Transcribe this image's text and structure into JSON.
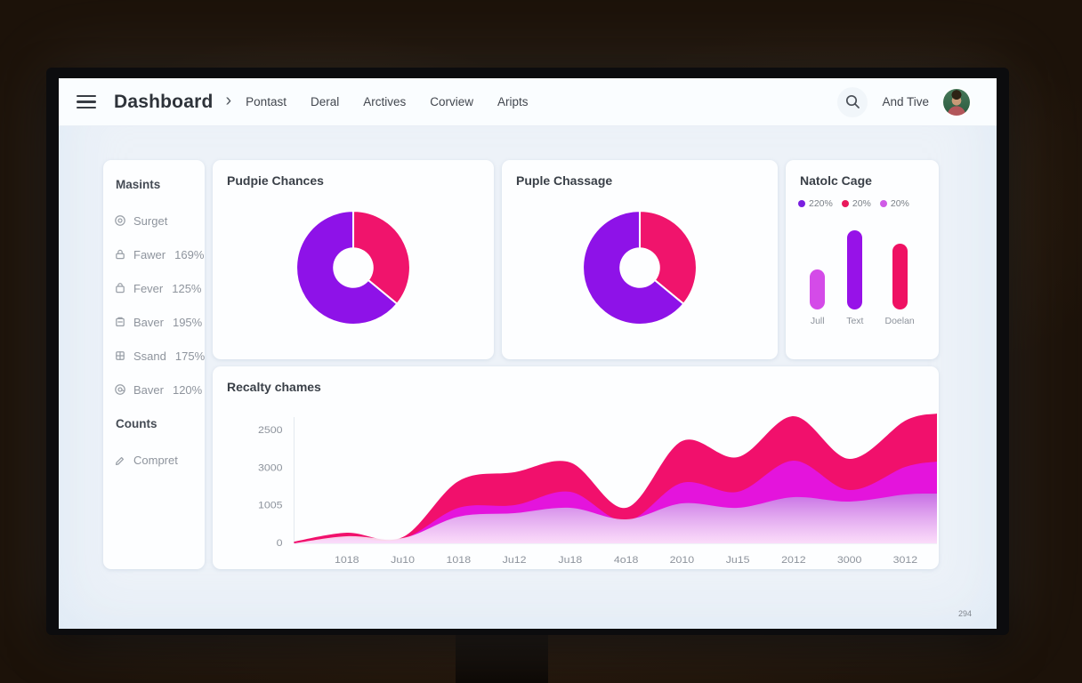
{
  "topbar": {
    "title": "Dashboard",
    "breadcrumb_separator": "›",
    "nav_items": [
      "Pontast",
      "Deral",
      "Arctives",
      "Corview",
      "Aripts"
    ],
    "user_name": "And Tive"
  },
  "sidebar": {
    "sections": [
      {
        "header": "Masints",
        "items": [
          {
            "icon": "target-circle-icon",
            "label": "Surget",
            "value": ""
          },
          {
            "icon": "lock-icon",
            "label": "Fawer",
            "value": "169%"
          },
          {
            "icon": "bag-icon",
            "label": "Fever",
            "value": "125%"
          },
          {
            "icon": "clipboard-icon",
            "label": "Baver",
            "value": "195%"
          },
          {
            "icon": "grid-icon",
            "label": "Ssand",
            "value": "175%"
          },
          {
            "icon": "at-circle-icon",
            "label": "Baver",
            "value": "120%"
          }
        ]
      },
      {
        "header": "Counts",
        "items": [
          {
            "icon": "pencil-icon",
            "label": "Compret",
            "value": ""
          }
        ]
      }
    ]
  },
  "cards": {
    "donut1_title": "Pudpie Chances",
    "donut2_title": "Puple Chassage",
    "bars_title": "Natolc Cage",
    "area_title": "Recalty chames"
  },
  "colors": {
    "pink": "#F0146C",
    "purple": "#8E12E8",
    "magenta": "#E414DC",
    "orchid": "#D44BE8",
    "area_light_top": "#C76FE4",
    "axis_text": "#8d939c"
  },
  "page": {
    "footer_page_number": "294"
  },
  "chart_data": [
    {
      "type": "pie",
      "title": "Pudpie Chances",
      "donut_hole_ratio": 0.34,
      "start_angle": "top",
      "direction": "clockwise",
      "slices": [
        {
          "name": "pink-segment",
          "value": 36,
          "color": "#F0146C"
        },
        {
          "name": "purple-segment",
          "value": 64,
          "color": "#8E12E8"
        }
      ]
    },
    {
      "type": "pie",
      "title": "Puple Chassage",
      "donut_hole_ratio": 0.34,
      "start_angle": "top",
      "direction": "clockwise",
      "slices": [
        {
          "name": "pink-segment",
          "value": 36,
          "color": "#F0146C"
        },
        {
          "name": "purple-segment",
          "value": 64,
          "color": "#8E12E8"
        }
      ]
    },
    {
      "type": "bar",
      "title": "Natolc Cage",
      "legend": [
        {
          "label": "220%",
          "color": "#7A1FE0"
        },
        {
          "label": "20%",
          "color": "#E8195B"
        },
        {
          "label": "20%",
          "color": "#CF5BE6"
        }
      ],
      "categories": [
        "Jull",
        "Text",
        "Doelan"
      ],
      "values": [
        45,
        103,
        74
      ],
      "values_note": "approximate bar heights in px, rounded pill bars",
      "colors": [
        "#D44BE8",
        "#9712E8",
        "#EF1163"
      ]
    },
    {
      "type": "area",
      "title": "Recalty chames",
      "y_tick_labels": [
        "2500",
        "3000",
        "1005",
        "0"
      ],
      "x_labels": [
        "1018",
        "Ju10",
        "1018",
        "Ju12",
        "Ju18",
        "4o18",
        "2010",
        "Ju15",
        "2012",
        "3000",
        "3012"
      ],
      "grid": false,
      "legend_position": "none",
      "values_note": "stacked-look wavy areas; values are approx heights (px above baseline, plot height 160) at [left-edge, each x label, right-edge]",
      "series": [
        {
          "name": "pink",
          "color": "#F1106C",
          "values": [
            2,
            12,
            7,
            70,
            80,
            91,
            40,
            115,
            97,
            143,
            95,
            138,
            146
          ]
        },
        {
          "name": "magenta",
          "color": "#E414DC",
          "values": [
            0,
            6,
            5,
            40,
            43,
            58,
            25,
            68,
            58,
            93,
            60,
            86,
            92
          ]
        },
        {
          "name": "light-purple",
          "color": "gradient:#C76FE4->white",
          "values": [
            0,
            8,
            6,
            30,
            34,
            40,
            27,
            45,
            40,
            52,
            47,
            55,
            56
          ]
        }
      ]
    }
  ]
}
